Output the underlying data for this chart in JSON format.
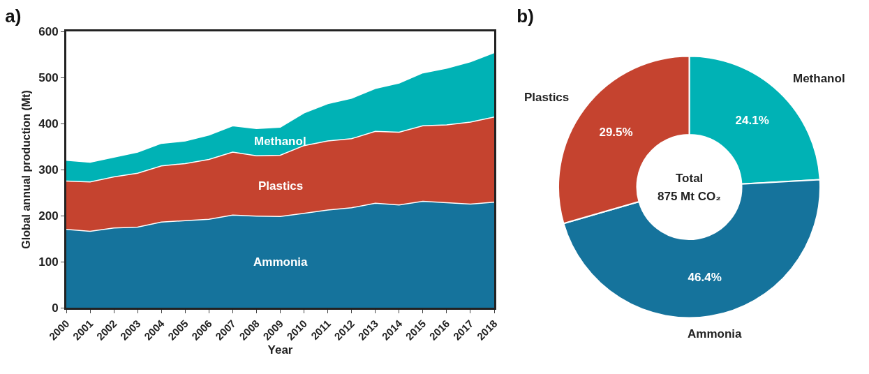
{
  "chart_data": [
    {
      "type": "area",
      "title": "a)",
      "xlabel": "Year",
      "ylabel": "Global annual production (Mt)",
      "stacked": true,
      "x": [
        2000,
        2001,
        2002,
        2003,
        2004,
        2005,
        2006,
        2007,
        2008,
        2009,
        2010,
        2011,
        2012,
        2013,
        2014,
        2015,
        2016,
        2017,
        2018
      ],
      "series": [
        {
          "name": "Ammonia",
          "color": "#15739c",
          "values": [
            170,
            166,
            173,
            175,
            186,
            189,
            192,
            201,
            199,
            198,
            205,
            212,
            217,
            227,
            223,
            231,
            228,
            225,
            229
          ]
        },
        {
          "name": "Plastics",
          "color": "#c5432f",
          "values": [
            105,
            107,
            111,
            117,
            122,
            124,
            130,
            137,
            131,
            133,
            147,
            150,
            150,
            156,
            158,
            164,
            169,
            178,
            185
          ]
        },
        {
          "name": "Methanol",
          "color": "#00b2b5",
          "values": [
            45,
            43,
            43,
            46,
            49,
            49,
            53,
            57,
            59,
            61,
            71,
            81,
            88,
            93,
            107,
            115,
            123,
            131,
            140
          ]
        }
      ],
      "xlim": [
        2000,
        2018
      ],
      "xticks": [
        2000,
        2001,
        2002,
        2003,
        2004,
        2005,
        2006,
        2007,
        2008,
        2009,
        2010,
        2011,
        2012,
        2013,
        2014,
        2015,
        2016,
        2017,
        2018
      ],
      "ylim": [
        0,
        600
      ],
      "yticks": [
        0,
        100,
        200,
        300,
        400,
        500,
        600
      ],
      "grid": false,
      "legend": false
    },
    {
      "type": "donut",
      "title": "b)",
      "categories": [
        "Methanol",
        "Ammonia",
        "Plastics"
      ],
      "values": [
        24.1,
        46.4,
        29.5
      ],
      "colors": [
        "#00b2b5",
        "#15739c",
        "#c5432f"
      ],
      "value_labels": [
        "24.1%",
        "46.4%",
        "29.5%"
      ],
      "annotations": [
        "Total",
        "875 Mt CO₂"
      ],
      "legend": false
    }
  ]
}
